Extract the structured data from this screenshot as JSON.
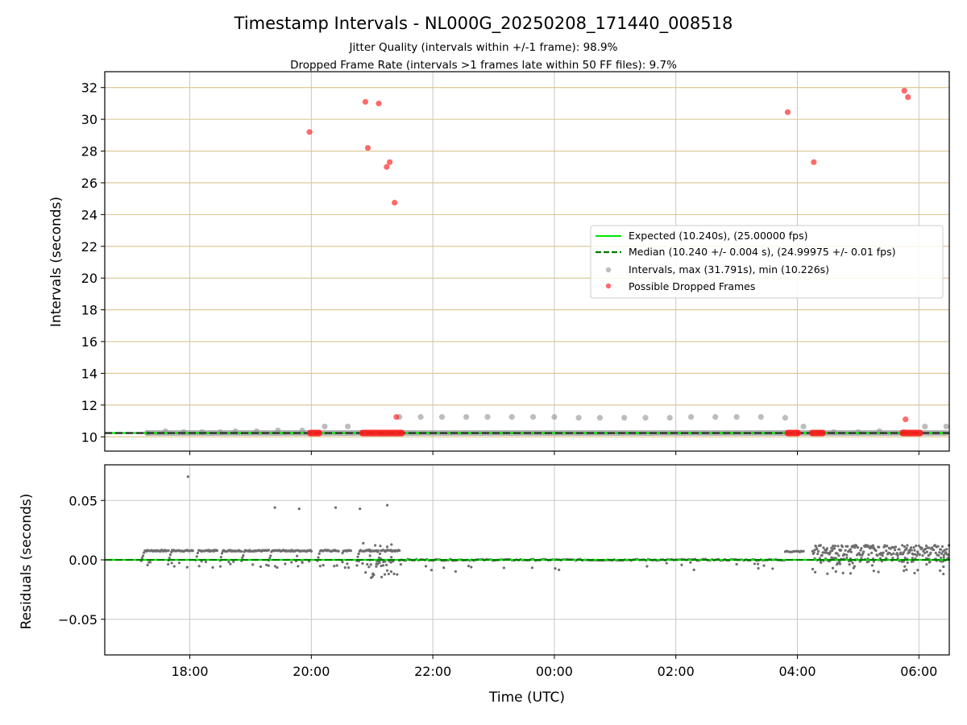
{
  "chart_data": [
    {
      "type": "scatter",
      "title": "Timestamp Intervals - NL000G_20250208_171440_008518",
      "subtitle_1": "Jitter Quality (intervals within +/-1 frame): 98.9%",
      "subtitle_2": "Dropped Frame Rate (intervals >1 frames late within 50 FF files): 9.7%",
      "ylabel": "Intervals (seconds)",
      "xlim_hours": [
        16.6,
        30.5
      ],
      "ylim": [
        9.1,
        33.0
      ],
      "x_ticks_hours": [
        18,
        20,
        22,
        24,
        26,
        28,
        30
      ],
      "y_ticks": [
        10,
        12,
        14,
        16,
        18,
        20,
        22,
        24,
        26,
        28,
        30,
        32
      ],
      "y_tick_labels": [
        "10",
        "12",
        "14",
        "16",
        "18",
        "20",
        "22",
        "24",
        "26",
        "28",
        "30",
        "32"
      ],
      "grid": "on",
      "legend_position": "center-right",
      "legend": {
        "expected": "Expected (10.240s), (25.00000 fps)",
        "median": "Median (10.240 +/- 0.004 s), (24.99975 +/- 0.01 fps)",
        "intervals": "Intervals, max (31.791s), min (10.226s)",
        "dropped": "Possible Dropped Frames"
      },
      "expected_value": 10.24,
      "median_value": 10.24,
      "baseline_x_range_hours": [
        17.25,
        30.5
      ],
      "intervals_x_hours": [
        17.3,
        17.6,
        17.9,
        18.2,
        18.5,
        18.75,
        19.1,
        19.45,
        19.85,
        20.22,
        20.6,
        21.45,
        21.8,
        22.15,
        22.55,
        22.9,
        23.3,
        23.65,
        24.0,
        24.4,
        24.75,
        25.15,
        25.5,
        25.9,
        26.25,
        26.65,
        27.0,
        27.4,
        27.8,
        28.1,
        28.6,
        29.0,
        29.35,
        29.75,
        30.1,
        30.45
      ],
      "intervals_y": [
        10.24,
        10.35,
        10.3,
        10.3,
        10.3,
        10.35,
        10.35,
        10.4,
        10.4,
        10.65,
        10.65,
        11.25,
        11.25,
        11.25,
        11.25,
        11.25,
        11.25,
        11.25,
        11.25,
        11.2,
        11.2,
        11.2,
        11.2,
        11.2,
        11.25,
        11.25,
        11.25,
        11.25,
        11.2,
        10.65,
        10.3,
        10.3,
        10.35,
        10.3,
        10.65,
        10.65
      ],
      "dropped_x_hours": [
        19.97,
        20.89,
        20.93,
        21.11,
        21.24,
        21.29,
        21.37,
        21.4,
        27.84,
        28.27,
        29.76,
        29.82,
        29.78
      ],
      "dropped_y": [
        29.2,
        31.1,
        28.2,
        31.0,
        27.0,
        27.3,
        24.75,
        11.25,
        30.45,
        27.3,
        31.8,
        31.4,
        11.1
      ],
      "dropped_clusters_hours": [
        [
          19.97,
          20.14
        ],
        [
          20.83,
          21.5
        ],
        [
          27.83,
          28.02
        ],
        [
          28.23,
          28.43
        ],
        [
          29.72,
          30.03
        ]
      ]
    },
    {
      "type": "scatter",
      "ylabel": "Residuals (seconds)",
      "xlabel": "Time (UTC)",
      "xlim_hours": [
        16.6,
        30.5
      ],
      "ylim": [
        -0.08,
        0.08
      ],
      "x_ticks_hours": [
        18,
        20,
        22,
        24,
        26,
        28,
        30
      ],
      "x_tick_labels": [
        "18:00",
        "20:00",
        "22:00",
        "00:00",
        "02:00",
        "04:00",
        "06:00"
      ],
      "y_ticks": [
        -0.05,
        0.0,
        0.05
      ],
      "y_tick_labels": [
        "−0.05",
        "0.00",
        "0.05"
      ],
      "grid": "on",
      "zero_line": 0.0,
      "outliers_x_hours": [
        17.97,
        19.4,
        19.8,
        20.4,
        20.8,
        21.25
      ],
      "outliers_y": [
        0.07,
        0.044,
        0.043,
        0.044,
        0.043,
        0.046
      ],
      "sawtooth_segments_hours": [
        [
          17.2,
          17.65
        ],
        [
          17.65,
          18.05
        ],
        [
          18.1,
          18.45
        ],
        [
          18.5,
          18.85
        ],
        [
          18.85,
          19.3
        ],
        [
          19.3,
          19.75
        ],
        [
          19.75,
          20.0
        ],
        [
          20.1,
          20.45
        ],
        [
          20.5,
          20.65
        ],
        [
          20.75,
          21.1
        ],
        [
          21.1,
          21.45
        ]
      ],
      "sawtooth_level": 0.0085,
      "flat_range_hours": [
        21.45,
        27.8
      ],
      "noisy_range_hours": [
        28.25,
        30.5
      ],
      "noisy_level": 0.008
    }
  ]
}
